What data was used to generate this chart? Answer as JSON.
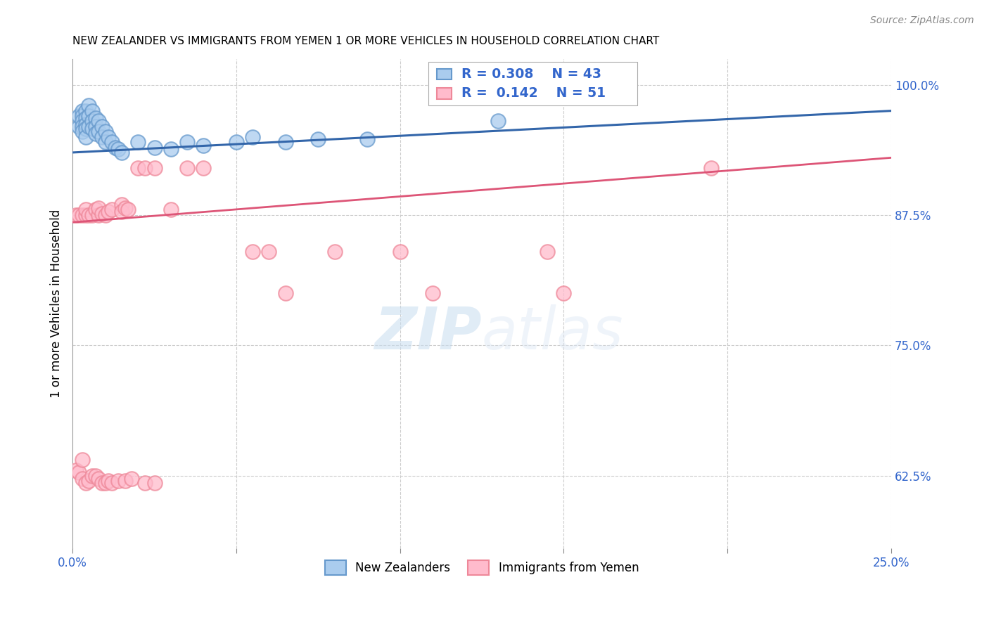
{
  "title": "NEW ZEALANDER VS IMMIGRANTS FROM YEMEN 1 OR MORE VEHICLES IN HOUSEHOLD CORRELATION CHART",
  "source": "Source: ZipAtlas.com",
  "ylabel": "1 or more Vehicles in Household",
  "xlim": [
    0.0,
    0.25
  ],
  "ylim": [
    0.555,
    1.025
  ],
  "xticks": [
    0.0,
    0.05,
    0.1,
    0.15,
    0.2,
    0.25
  ],
  "xtick_labels": [
    "0.0%",
    "",
    "",
    "",
    "",
    "25.0%"
  ],
  "ytick_labels_right": [
    "62.5%",
    "75.0%",
    "87.5%",
    "100.0%"
  ],
  "ytick_positions_right": [
    0.625,
    0.75,
    0.875,
    1.0
  ],
  "legend_R1": "0.308",
  "legend_N1": "43",
  "legend_R2": "0.142",
  "legend_N2": "51",
  "legend_label1": "New Zealanders",
  "legend_label2": "Immigrants from Yemen",
  "color_nz_fill": "#aaccee",
  "color_nz_edge": "#6699cc",
  "color_yemen_fill": "#ffbbcc",
  "color_yemen_edge": "#ee8899",
  "color_line_nz": "#3366aa",
  "color_line_yemen": "#dd5577",
  "color_tick": "#3366cc",
  "watermark_color": "#ddeeff",
  "nz_x": [
    0.002,
    0.002,
    0.003,
    0.003,
    0.003,
    0.003,
    0.003,
    0.004,
    0.004,
    0.004,
    0.004,
    0.004,
    0.005,
    0.005,
    0.005,
    0.006,
    0.006,
    0.006,
    0.007,
    0.007,
    0.007,
    0.008,
    0.008,
    0.009,
    0.009,
    0.01,
    0.01,
    0.011,
    0.012,
    0.013,
    0.014,
    0.015,
    0.02,
    0.025,
    0.03,
    0.035,
    0.04,
    0.05,
    0.055,
    0.065,
    0.075,
    0.09,
    0.13
  ],
  "nz_y": [
    0.96,
    0.97,
    0.975,
    0.97,
    0.965,
    0.96,
    0.955,
    0.975,
    0.968,
    0.962,
    0.958,
    0.95,
    0.98,
    0.97,
    0.96,
    0.975,
    0.965,
    0.958,
    0.968,
    0.96,
    0.953,
    0.965,
    0.955,
    0.96,
    0.95,
    0.955,
    0.945,
    0.95,
    0.945,
    0.94,
    0.938,
    0.935,
    0.945,
    0.94,
    0.938,
    0.945,
    0.942,
    0.945,
    0.95,
    0.945,
    0.948,
    0.948,
    0.965
  ],
  "yemen_x": [
    0.001,
    0.002,
    0.003,
    0.004,
    0.004,
    0.005,
    0.006,
    0.007,
    0.008,
    0.008,
    0.009,
    0.01,
    0.011,
    0.012,
    0.015,
    0.015,
    0.016,
    0.017,
    0.02,
    0.022,
    0.025,
    0.03,
    0.035,
    0.04,
    0.055,
    0.06,
    0.065,
    0.08,
    0.1,
    0.11,
    0.145,
    0.15,
    0.195,
    0.001,
    0.002,
    0.003,
    0.003,
    0.004,
    0.005,
    0.006,
    0.007,
    0.008,
    0.009,
    0.01,
    0.011,
    0.012,
    0.014,
    0.016,
    0.018,
    0.022,
    0.025
  ],
  "yemen_y": [
    0.875,
    0.875,
    0.875,
    0.875,
    0.88,
    0.875,
    0.875,
    0.88,
    0.875,
    0.882,
    0.876,
    0.875,
    0.878,
    0.88,
    0.885,
    0.878,
    0.882,
    0.88,
    0.92,
    0.92,
    0.92,
    0.88,
    0.92,
    0.92,
    0.84,
    0.84,
    0.8,
    0.84,
    0.84,
    0.8,
    0.84,
    0.8,
    0.92,
    0.63,
    0.628,
    0.64,
    0.622,
    0.618,
    0.62,
    0.625,
    0.625,
    0.622,
    0.618,
    0.618,
    0.62,
    0.618,
    0.62,
    0.62,
    0.622,
    0.618,
    0.618
  ],
  "nz_line_x": [
    0.0,
    0.25
  ],
  "nz_line_y": [
    0.935,
    0.975
  ],
  "yemen_line_x": [
    0.0,
    0.25
  ],
  "yemen_line_y": [
    0.868,
    0.93
  ]
}
